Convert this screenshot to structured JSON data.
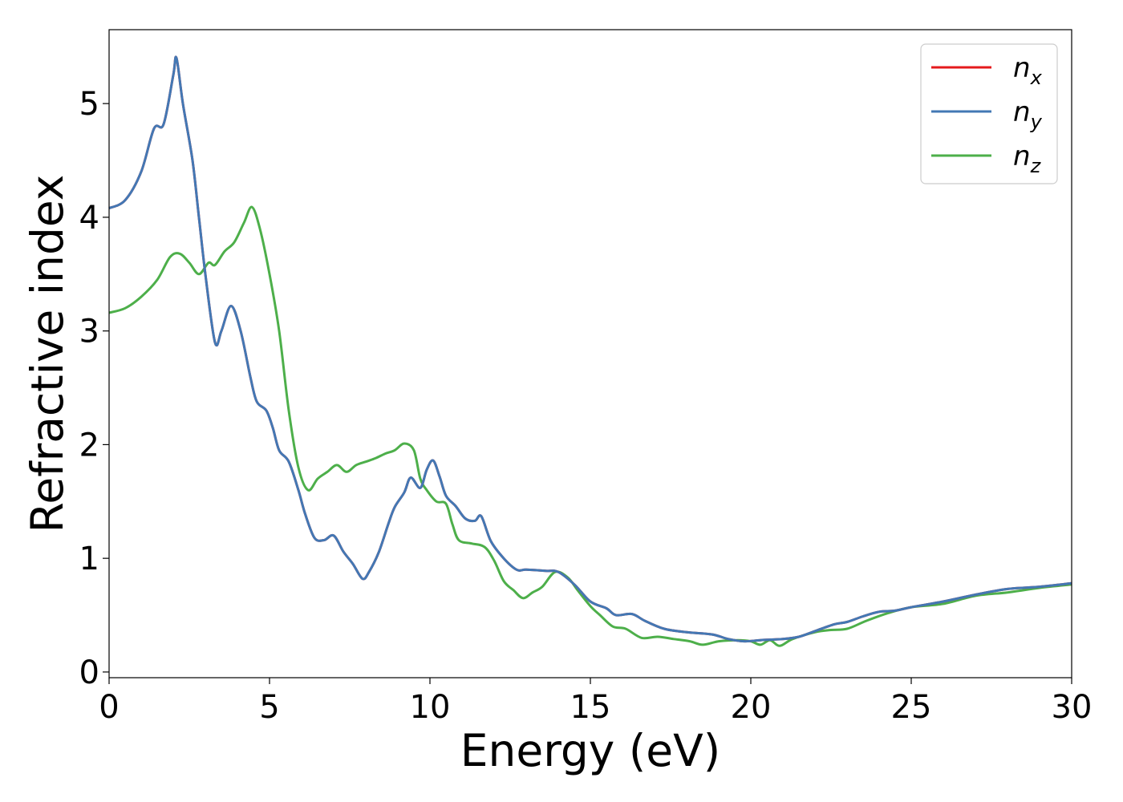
{
  "chart_data": {
    "type": "line",
    "xlabel": "Energy (eV)",
    "ylabel": "Refractive index",
    "xlim": [
      0,
      30
    ],
    "ylim": [
      -0.05,
      5.65
    ],
    "xticks": [
      0,
      5,
      10,
      15,
      20,
      25,
      30
    ],
    "yticks": [
      0,
      1,
      2,
      3,
      4,
      5
    ],
    "grid": false,
    "legend_position": "top-right",
    "series": [
      {
        "name": "n",
        "subscript": "x",
        "color": "#e41a1c",
        "points": [
          [
            0,
            4.08
          ],
          [
            0.5,
            4.15
          ],
          [
            1.0,
            4.4
          ],
          [
            1.4,
            4.78
          ],
          [
            1.7,
            4.82
          ],
          [
            2.0,
            5.25
          ],
          [
            2.1,
            5.4
          ],
          [
            2.3,
            5.0
          ],
          [
            2.6,
            4.5
          ],
          [
            2.8,
            4.0
          ],
          [
            3.0,
            3.5
          ],
          [
            3.3,
            2.9
          ],
          [
            3.5,
            3.0
          ],
          [
            3.8,
            3.22
          ],
          [
            4.1,
            3.0
          ],
          [
            4.4,
            2.6
          ],
          [
            4.6,
            2.38
          ],
          [
            4.9,
            2.3
          ],
          [
            5.1,
            2.15
          ],
          [
            5.3,
            1.95
          ],
          [
            5.6,
            1.85
          ],
          [
            5.9,
            1.6
          ],
          [
            6.1,
            1.4
          ],
          [
            6.4,
            1.18
          ],
          [
            6.7,
            1.16
          ],
          [
            7.0,
            1.2
          ],
          [
            7.3,
            1.06
          ],
          [
            7.6,
            0.95
          ],
          [
            7.9,
            0.82
          ],
          [
            8.1,
            0.88
          ],
          [
            8.4,
            1.05
          ],
          [
            8.7,
            1.3
          ],
          [
            8.9,
            1.45
          ],
          [
            9.2,
            1.58
          ],
          [
            9.4,
            1.71
          ],
          [
            9.7,
            1.62
          ],
          [
            9.9,
            1.78
          ],
          [
            10.1,
            1.86
          ],
          [
            10.3,
            1.72
          ],
          [
            10.5,
            1.55
          ],
          [
            10.8,
            1.46
          ],
          [
            11.1,
            1.35
          ],
          [
            11.4,
            1.33
          ],
          [
            11.6,
            1.37
          ],
          [
            11.9,
            1.15
          ],
          [
            12.3,
            1.0
          ],
          [
            12.7,
            0.9
          ],
          [
            13.0,
            0.9
          ],
          [
            13.6,
            0.89
          ],
          [
            14.0,
            0.88
          ],
          [
            14.5,
            0.77
          ],
          [
            15.0,
            0.62
          ],
          [
            15.5,
            0.56
          ],
          [
            15.8,
            0.5
          ],
          [
            16.3,
            0.51
          ],
          [
            16.7,
            0.45
          ],
          [
            17.3,
            0.38
          ],
          [
            18.0,
            0.35
          ],
          [
            18.8,
            0.33
          ],
          [
            19.3,
            0.29
          ],
          [
            19.8,
            0.27
          ],
          [
            20.3,
            0.28
          ],
          [
            21.0,
            0.29
          ],
          [
            21.5,
            0.31
          ],
          [
            22.0,
            0.36
          ],
          [
            22.6,
            0.42
          ],
          [
            23.0,
            0.44
          ],
          [
            23.5,
            0.49
          ],
          [
            24.0,
            0.53
          ],
          [
            24.5,
            0.54
          ],
          [
            25.0,
            0.57
          ],
          [
            26.0,
            0.62
          ],
          [
            27.0,
            0.68
          ],
          [
            28.0,
            0.73
          ],
          [
            29.0,
            0.75
          ],
          [
            30.0,
            0.78
          ]
        ]
      },
      {
        "name": "n",
        "subscript": "y",
        "color": "#4378b4",
        "points": [
          [
            0,
            4.08
          ],
          [
            0.5,
            4.15
          ],
          [
            1.0,
            4.4
          ],
          [
            1.4,
            4.78
          ],
          [
            1.7,
            4.82
          ],
          [
            2.0,
            5.25
          ],
          [
            2.1,
            5.4
          ],
          [
            2.3,
            5.0
          ],
          [
            2.6,
            4.5
          ],
          [
            2.8,
            4.0
          ],
          [
            3.0,
            3.5
          ],
          [
            3.3,
            2.9
          ],
          [
            3.5,
            3.0
          ],
          [
            3.8,
            3.22
          ],
          [
            4.1,
            3.0
          ],
          [
            4.4,
            2.6
          ],
          [
            4.6,
            2.38
          ],
          [
            4.9,
            2.3
          ],
          [
            5.1,
            2.15
          ],
          [
            5.3,
            1.95
          ],
          [
            5.6,
            1.85
          ],
          [
            5.9,
            1.6
          ],
          [
            6.1,
            1.4
          ],
          [
            6.4,
            1.18
          ],
          [
            6.7,
            1.16
          ],
          [
            7.0,
            1.2
          ],
          [
            7.3,
            1.06
          ],
          [
            7.6,
            0.95
          ],
          [
            7.9,
            0.82
          ],
          [
            8.1,
            0.88
          ],
          [
            8.4,
            1.05
          ],
          [
            8.7,
            1.3
          ],
          [
            8.9,
            1.45
          ],
          [
            9.2,
            1.58
          ],
          [
            9.4,
            1.71
          ],
          [
            9.7,
            1.62
          ],
          [
            9.9,
            1.78
          ],
          [
            10.1,
            1.86
          ],
          [
            10.3,
            1.72
          ],
          [
            10.5,
            1.55
          ],
          [
            10.8,
            1.46
          ],
          [
            11.1,
            1.35
          ],
          [
            11.4,
            1.33
          ],
          [
            11.6,
            1.37
          ],
          [
            11.9,
            1.15
          ],
          [
            12.3,
            1.0
          ],
          [
            12.7,
            0.9
          ],
          [
            13.0,
            0.9
          ],
          [
            13.6,
            0.89
          ],
          [
            14.0,
            0.88
          ],
          [
            14.5,
            0.77
          ],
          [
            15.0,
            0.62
          ],
          [
            15.5,
            0.56
          ],
          [
            15.8,
            0.5
          ],
          [
            16.3,
            0.51
          ],
          [
            16.7,
            0.45
          ],
          [
            17.3,
            0.38
          ],
          [
            18.0,
            0.35
          ],
          [
            18.8,
            0.33
          ],
          [
            19.3,
            0.29
          ],
          [
            19.8,
            0.27
          ],
          [
            20.3,
            0.28
          ],
          [
            21.0,
            0.29
          ],
          [
            21.5,
            0.31
          ],
          [
            22.0,
            0.36
          ],
          [
            22.6,
            0.42
          ],
          [
            23.0,
            0.44
          ],
          [
            23.5,
            0.49
          ],
          [
            24.0,
            0.53
          ],
          [
            24.5,
            0.54
          ],
          [
            25.0,
            0.57
          ],
          [
            26.0,
            0.62
          ],
          [
            27.0,
            0.68
          ],
          [
            28.0,
            0.73
          ],
          [
            29.0,
            0.75
          ],
          [
            30.0,
            0.78
          ]
        ]
      },
      {
        "name": "n",
        "subscript": "z",
        "color": "#4daf4a",
        "points": [
          [
            0,
            3.16
          ],
          [
            0.5,
            3.2
          ],
          [
            1.0,
            3.3
          ],
          [
            1.5,
            3.45
          ],
          [
            1.9,
            3.65
          ],
          [
            2.2,
            3.68
          ],
          [
            2.5,
            3.6
          ],
          [
            2.8,
            3.5
          ],
          [
            3.1,
            3.6
          ],
          [
            3.3,
            3.58
          ],
          [
            3.6,
            3.7
          ],
          [
            3.9,
            3.78
          ],
          [
            4.2,
            3.95
          ],
          [
            4.45,
            4.09
          ],
          [
            4.7,
            3.9
          ],
          [
            5.0,
            3.5
          ],
          [
            5.3,
            3.0
          ],
          [
            5.6,
            2.3
          ],
          [
            5.9,
            1.8
          ],
          [
            6.2,
            1.6
          ],
          [
            6.5,
            1.7
          ],
          [
            6.8,
            1.76
          ],
          [
            7.1,
            1.82
          ],
          [
            7.4,
            1.76
          ],
          [
            7.7,
            1.82
          ],
          [
            8.0,
            1.85
          ],
          [
            8.3,
            1.88
          ],
          [
            8.6,
            1.92
          ],
          [
            8.9,
            1.95
          ],
          [
            9.2,
            2.01
          ],
          [
            9.5,
            1.95
          ],
          [
            9.7,
            1.7
          ],
          [
            9.9,
            1.6
          ],
          [
            10.2,
            1.5
          ],
          [
            10.5,
            1.48
          ],
          [
            10.7,
            1.3
          ],
          [
            10.9,
            1.16
          ],
          [
            11.3,
            1.13
          ],
          [
            11.7,
            1.1
          ],
          [
            12.0,
            0.98
          ],
          [
            12.3,
            0.8
          ],
          [
            12.6,
            0.72
          ],
          [
            12.9,
            0.65
          ],
          [
            13.2,
            0.7
          ],
          [
            13.5,
            0.75
          ],
          [
            13.9,
            0.88
          ],
          [
            14.3,
            0.83
          ],
          [
            14.6,
            0.72
          ],
          [
            15.0,
            0.58
          ],
          [
            15.3,
            0.5
          ],
          [
            15.7,
            0.4
          ],
          [
            16.1,
            0.38
          ],
          [
            16.6,
            0.3
          ],
          [
            17.1,
            0.31
          ],
          [
            17.6,
            0.29
          ],
          [
            18.1,
            0.27
          ],
          [
            18.5,
            0.24
          ],
          [
            19.0,
            0.27
          ],
          [
            19.6,
            0.28
          ],
          [
            20.0,
            0.27
          ],
          [
            20.3,
            0.24
          ],
          [
            20.6,
            0.28
          ],
          [
            20.9,
            0.23
          ],
          [
            21.3,
            0.29
          ],
          [
            22.0,
            0.35
          ],
          [
            22.5,
            0.37
          ],
          [
            23.0,
            0.38
          ],
          [
            23.6,
            0.45
          ],
          [
            24.3,
            0.52
          ],
          [
            25.0,
            0.57
          ],
          [
            26.0,
            0.6
          ],
          [
            27.0,
            0.67
          ],
          [
            28.0,
            0.7
          ],
          [
            29.0,
            0.74
          ],
          [
            30.0,
            0.77
          ]
        ]
      }
    ]
  }
}
